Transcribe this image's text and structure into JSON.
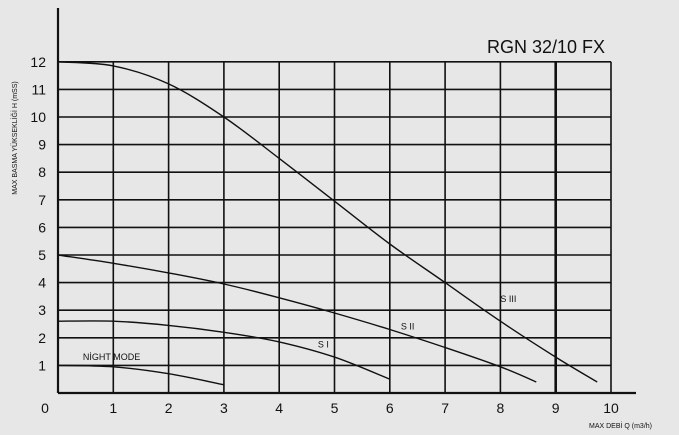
{
  "chart_data": {
    "type": "line",
    "title": "RGN 32/10 FX",
    "xlabel": "MAX DEBİ  Q (m3/h)",
    "ylabel": "MAX BASMA YÜKSEKLİĞİ H (mSS)",
    "xlim": [
      0,
      10
    ],
    "ylim": [
      0,
      12
    ],
    "xticks": [
      "0",
      "1",
      "2",
      "3",
      "4",
      "5",
      "6",
      "7",
      "8",
      "9",
      "10"
    ],
    "yticks": [
      "1",
      "2",
      "3",
      "4",
      "5",
      "6",
      "7",
      "8",
      "9",
      "10",
      "11",
      "12"
    ],
    "grid": true,
    "series": [
      {
        "name": "S III",
        "points": [
          [
            0,
            12.0
          ],
          [
            1,
            11.85
          ],
          [
            2,
            11.2
          ],
          [
            3,
            10.0
          ],
          [
            4,
            8.5
          ],
          [
            5,
            6.95
          ],
          [
            6,
            5.4
          ],
          [
            7,
            4.0
          ],
          [
            8,
            2.6
          ],
          [
            9,
            1.3
          ],
          [
            9.75,
            0.4
          ]
        ]
      },
      {
        "name": "S II",
        "points": [
          [
            0,
            5.0
          ],
          [
            1,
            4.7
          ],
          [
            2,
            4.35
          ],
          [
            3,
            3.95
          ],
          [
            4,
            3.45
          ],
          [
            5,
            2.9
          ],
          [
            6,
            2.3
          ],
          [
            7,
            1.65
          ],
          [
            8,
            0.95
          ],
          [
            8.65,
            0.4
          ]
        ]
      },
      {
        "name": "S I",
        "points": [
          [
            0,
            2.6
          ],
          [
            1,
            2.6
          ],
          [
            2,
            2.45
          ],
          [
            3,
            2.2
          ],
          [
            4,
            1.85
          ],
          [
            5,
            1.3
          ],
          [
            6,
            0.5
          ]
        ]
      },
      {
        "name": "NİGHT MODE",
        "points": [
          [
            0,
            1.0
          ],
          [
            1,
            0.95
          ],
          [
            2,
            0.7
          ],
          [
            3,
            0.3
          ]
        ]
      }
    ]
  }
}
